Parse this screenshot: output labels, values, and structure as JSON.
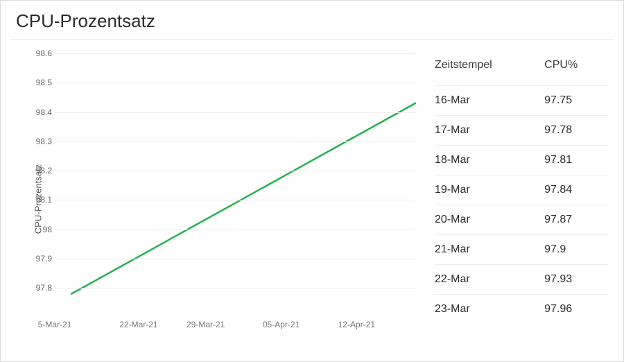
{
  "title": "CPU-Prozentsatz",
  "chart": {
    "type": "line",
    "ylabel": "CPU-Prozentsatz",
    "label_fontsize": 13,
    "label_color": "#555555",
    "line_color": "#22b14c",
    "line_width": 2.5,
    "grid_color": "#ededed",
    "background_color": "#ffffff",
    "tick_font_color": "#666666",
    "tick_fontsize": 12,
    "ylim": [
      97.72,
      98.6
    ],
    "yticks": [
      97.8,
      97.9,
      98,
      98.1,
      98.2,
      98.3,
      98.4,
      98.5,
      98.6
    ],
    "x_index_range": [
      0,
      43
    ],
    "xticks": [
      {
        "index": 0,
        "label": "5-Mar-21"
      },
      {
        "index": 10,
        "label": "22-Mar-21"
      },
      {
        "index": 18,
        "label": "29-Mar-21"
      },
      {
        "index": 27,
        "label": "05-Apr-21"
      },
      {
        "index": 36,
        "label": "12-Apr-21"
      }
    ],
    "series": [
      {
        "x": 2,
        "y": 97.78
      },
      {
        "x": 43,
        "y": 98.43
      }
    ]
  },
  "table": {
    "headers": [
      "Zeitstempel",
      "CPU%"
    ],
    "rows": [
      [
        "16-Mar",
        "97.75"
      ],
      [
        "17-Mar",
        "97.78"
      ],
      [
        "18-Mar",
        "97.81"
      ],
      [
        "19-Mar",
        "97.84"
      ],
      [
        "20-Mar",
        "97.87"
      ],
      [
        "21-Mar",
        "97.9"
      ],
      [
        "22-Mar",
        "97.93"
      ],
      [
        "23-Mar",
        "97.96"
      ]
    ]
  },
  "colors": {
    "card_border": "#dcdcdc",
    "title_color": "#2b2b2b",
    "row_border": "#eeeeee"
  },
  "typography": {
    "title_fontsize": 26,
    "table_fontsize": 16
  }
}
